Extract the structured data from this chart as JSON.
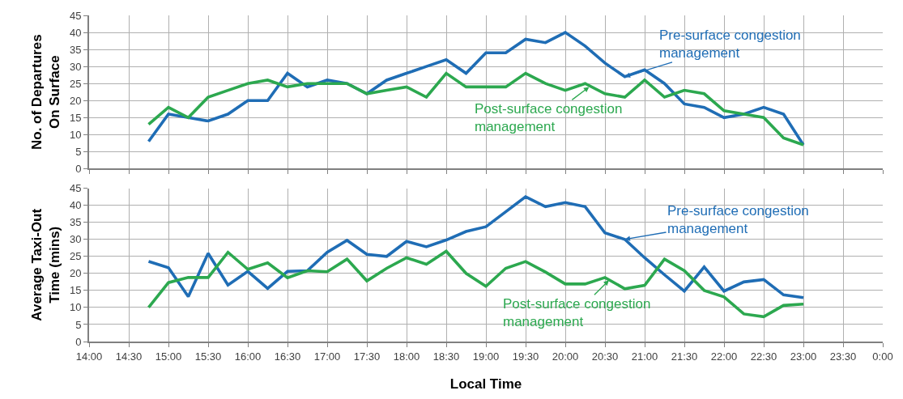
{
  "chart_data": [
    {
      "type": "line",
      "ylabel": "No. of Departures On Surface",
      "x": [
        14.75,
        15,
        15.25,
        15.5,
        15.75,
        16,
        16.25,
        16.5,
        16.75,
        17,
        17.25,
        17.5,
        17.75,
        18,
        18.25,
        18.5,
        18.75,
        19,
        19.25,
        19.5,
        19.75,
        20,
        20.25,
        20.5,
        20.75,
        21,
        21.25,
        21.5,
        21.75,
        22,
        22.25,
        22.5,
        22.75,
        23
      ],
      "series": [
        {
          "color": "#1f6db5",
          "values": [
            8,
            16,
            15,
            14,
            16,
            20,
            20,
            28,
            24,
            26,
            25,
            22,
            26,
            28,
            30,
            32,
            28,
            34,
            34,
            38,
            37,
            40,
            36,
            31,
            27,
            29,
            25,
            19,
            18,
            15,
            16,
            18,
            16,
            7
          ]
        },
        {
          "color": "#2ca84f",
          "values": [
            13,
            18,
            15,
            21,
            23,
            25,
            26,
            24,
            25,
            25,
            25,
            22,
            23,
            24,
            21,
            28,
            24,
            24,
            24,
            28,
            25,
            23,
            25,
            22,
            21,
            26,
            21,
            23,
            22,
            17,
            16,
            15,
            9,
            7
          ]
        }
      ],
      "annotations": [
        {
          "text": "Pre-surface congestion management",
          "x": 20.75,
          "y": 27
        },
        {
          "text": "Post-surface congestion management",
          "x": 20.3,
          "y": 24
        }
      ],
      "xlim": [
        14,
        24
      ],
      "xticks": [
        14,
        14.5,
        15,
        15.5,
        16,
        16.5,
        17,
        17.5,
        18,
        18.5,
        19,
        19.5,
        20,
        20.5,
        21,
        21.5,
        22,
        22.5,
        23,
        23.5,
        24
      ],
      "ylim": [
        0,
        45
      ],
      "yticks": [
        0,
        5,
        10,
        15,
        20,
        25,
        30,
        35,
        40,
        45
      ],
      "grid": true,
      "tick_labels": "y"
    },
    {
      "type": "line",
      "ylabel": "Average Taxi-Out Time (mins)",
      "xlabel": "Local Time",
      "x": [
        14.75,
        15,
        15.25,
        15.5,
        15.75,
        16,
        16.25,
        16.5,
        16.75,
        17,
        17.25,
        17.5,
        17.75,
        18,
        18.25,
        18.5,
        18.75,
        19,
        19.25,
        19.5,
        19.75,
        20,
        20.25,
        20.5,
        20.75,
        21,
        21.25,
        21.5,
        21.75,
        22,
        22.25,
        22.5,
        22.75,
        23
      ],
      "series": [
        {
          "color": "#1f6db5",
          "values": [
            23.5,
            21.7,
            13.2,
            25.9,
            16.6,
            20.6,
            15.6,
            20.6,
            20.8,
            26.2,
            29.7,
            25.6,
            25,
            29.4,
            27.8,
            29.8,
            32.3,
            33.7,
            38.1,
            42.5,
            39.6,
            40.8,
            39.6,
            31.9,
            30,
            24.6,
            19.6,
            14.8,
            21.9,
            14.8,
            17.5,
            18.2,
            13.7,
            12.9
          ]
        },
        {
          "color": "#2ca84f",
          "values": [
            10,
            17.3,
            18.8,
            18.8,
            26.2,
            21.2,
            23.1,
            18.7,
            20.8,
            20.5,
            24.2,
            17.8,
            21.5,
            24.6,
            22.7,
            26.5,
            20,
            16.2,
            21.5,
            23.5,
            20.4,
            16.9,
            16.9,
            18.8,
            15.5,
            16.5,
            24.2,
            20.8,
            15,
            13.1,
            8.1,
            7.3,
            10.6,
            11
          ]
        }
      ],
      "annotations": [
        {
          "text": "Pre-surface congestion management",
          "x": 20.75,
          "y": 30
        },
        {
          "text": "Post-surface congestion management",
          "x": 20.55,
          "y": 18
        }
      ],
      "xlim": [
        14,
        24
      ],
      "xticks": [
        {
          "value": 14,
          "label": "14:00"
        },
        {
          "value": 14.5,
          "label": "14:30"
        },
        {
          "value": 15,
          "label": "15:00"
        },
        {
          "value": 15.5,
          "label": "15:30"
        },
        {
          "value": 16,
          "label": "16:00"
        },
        {
          "value": 16.5,
          "label": "16:30"
        },
        {
          "value": 17,
          "label": "17:00"
        },
        {
          "value": 17.5,
          "label": "17:30"
        },
        {
          "value": 18,
          "label": "18:00"
        },
        {
          "value": 18.5,
          "label": "18:30"
        },
        {
          "value": 19,
          "label": "19:00"
        },
        {
          "value": 19.5,
          "label": "19:30"
        },
        {
          "value": 20,
          "label": "20:00"
        },
        {
          "value": 20.5,
          "label": "20:30"
        },
        {
          "value": 21,
          "label": "21:00"
        },
        {
          "value": 21.5,
          "label": "21:30"
        },
        {
          "value": 22,
          "label": "22:00"
        },
        {
          "value": 22.5,
          "label": "22:30"
        },
        {
          "value": 23,
          "label": "23:00"
        },
        {
          "value": 23.5,
          "label": "23:30"
        },
        {
          "value": 24,
          "label": "0:00"
        }
      ],
      "ylim": [
        0,
        45
      ],
      "yticks": [
        0,
        5,
        10,
        15,
        20,
        25,
        30,
        35,
        40,
        45
      ],
      "grid": true
    }
  ]
}
